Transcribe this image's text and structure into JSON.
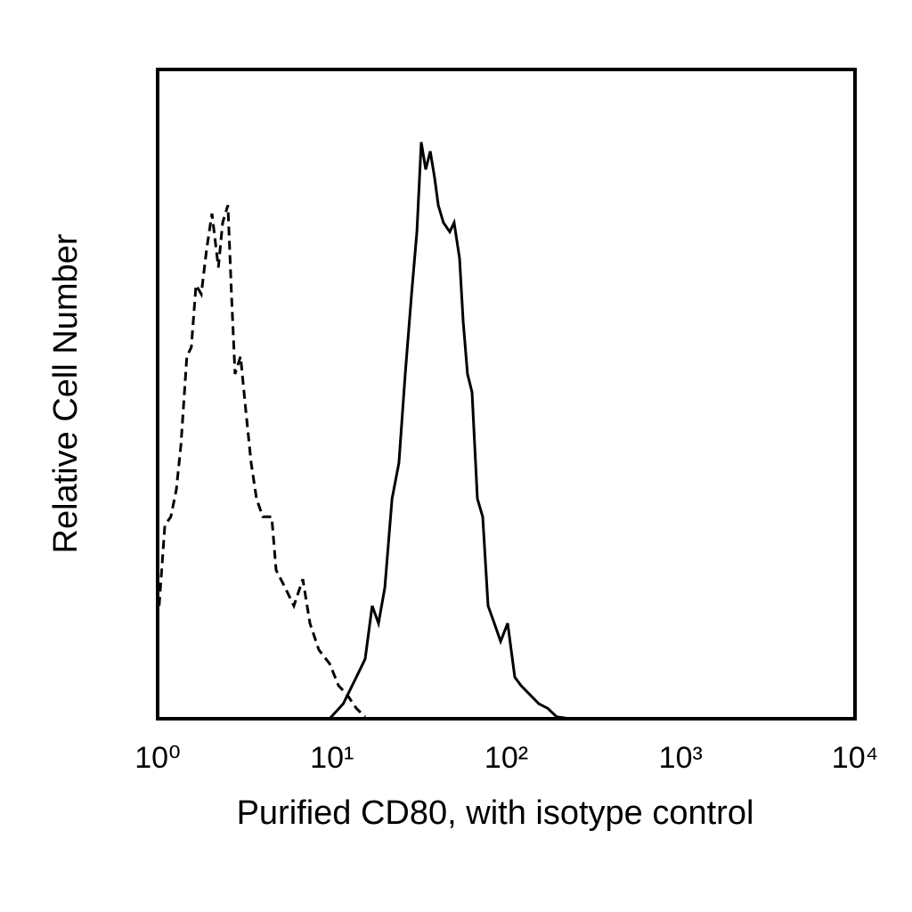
{
  "chart_data": {
    "type": "line",
    "xlabel": "Purified CD80, with isotype control",
    "ylabel": "Relative Cell Number",
    "xscale": "log",
    "xlim": [
      1,
      10000
    ],
    "xticks": [
      {
        "value": 1,
        "label": "10⁰"
      },
      {
        "value": 10,
        "label": "10¹"
      },
      {
        "value": 100,
        "label": "10²"
      },
      {
        "value": 1000,
        "label": "10³"
      },
      {
        "value": 10000,
        "label": "10⁴"
      }
    ],
    "ylim": [
      0,
      100
    ],
    "series": [
      {
        "color": "#000000",
        "style": "dashed",
        "x": [
          1.02,
          1.1,
          1.19,
          1.28,
          1.36,
          1.47,
          1.56,
          1.66,
          1.78,
          1.91,
          2.05,
          2.23,
          2.36,
          2.53,
          2.65,
          2.78,
          2.99,
          3.2,
          3.44,
          3.69,
          4.01,
          4.51,
          4.78,
          5.38,
          6.05,
          6.8,
          7.47,
          8.41,
          9.68,
          10.9,
          12.2,
          13.8,
          15.5
        ],
        "values": [
          17.4,
          29.8,
          31.1,
          35.3,
          42.1,
          55.8,
          57.2,
          66.8,
          65.4,
          72.3,
          77.8,
          69.5,
          76.4,
          79.1,
          65.4,
          53.1,
          55.8,
          47.6,
          39.4,
          33.9,
          31.1,
          31.1,
          22.9,
          20.2,
          17.4,
          21.5,
          14.7,
          10.6,
          8.5,
          5.1,
          3.7,
          1.6,
          0.3
        ]
      },
      {
        "color": "#000000",
        "style": "solid",
        "x": [
          9.68,
          11.6,
          13.8,
          15.5,
          17.0,
          18.5,
          20.1,
          22.1,
          24.2,
          26.3,
          28.6,
          30.7,
          32.5,
          34.5,
          36.6,
          38.8,
          40.7,
          43.6,
          47.4,
          50.2,
          53.9,
          56.5,
          59.9,
          63.6,
          68.2,
          73.2,
          78.6,
          85.3,
          92.7,
          101.8,
          111.8,
          121.4,
          136.6,
          153.7,
          172.8,
          194.4,
          231.9,
          330
        ],
        "values": [
          0,
          2.3,
          6.4,
          9.2,
          17.4,
          14.7,
          20.2,
          33.9,
          39.4,
          53.1,
          65.4,
          75.0,
          88.8,
          84.6,
          87.4,
          83.3,
          79.1,
          76.4,
          75.0,
          76.4,
          70.9,
          61.3,
          53.1,
          50.3,
          33.9,
          31.1,
          17.4,
          14.7,
          11.9,
          14.7,
          6.4,
          5.1,
          3.7,
          2.3,
          1.6,
          0.3,
          0,
          0
        ]
      }
    ]
  }
}
